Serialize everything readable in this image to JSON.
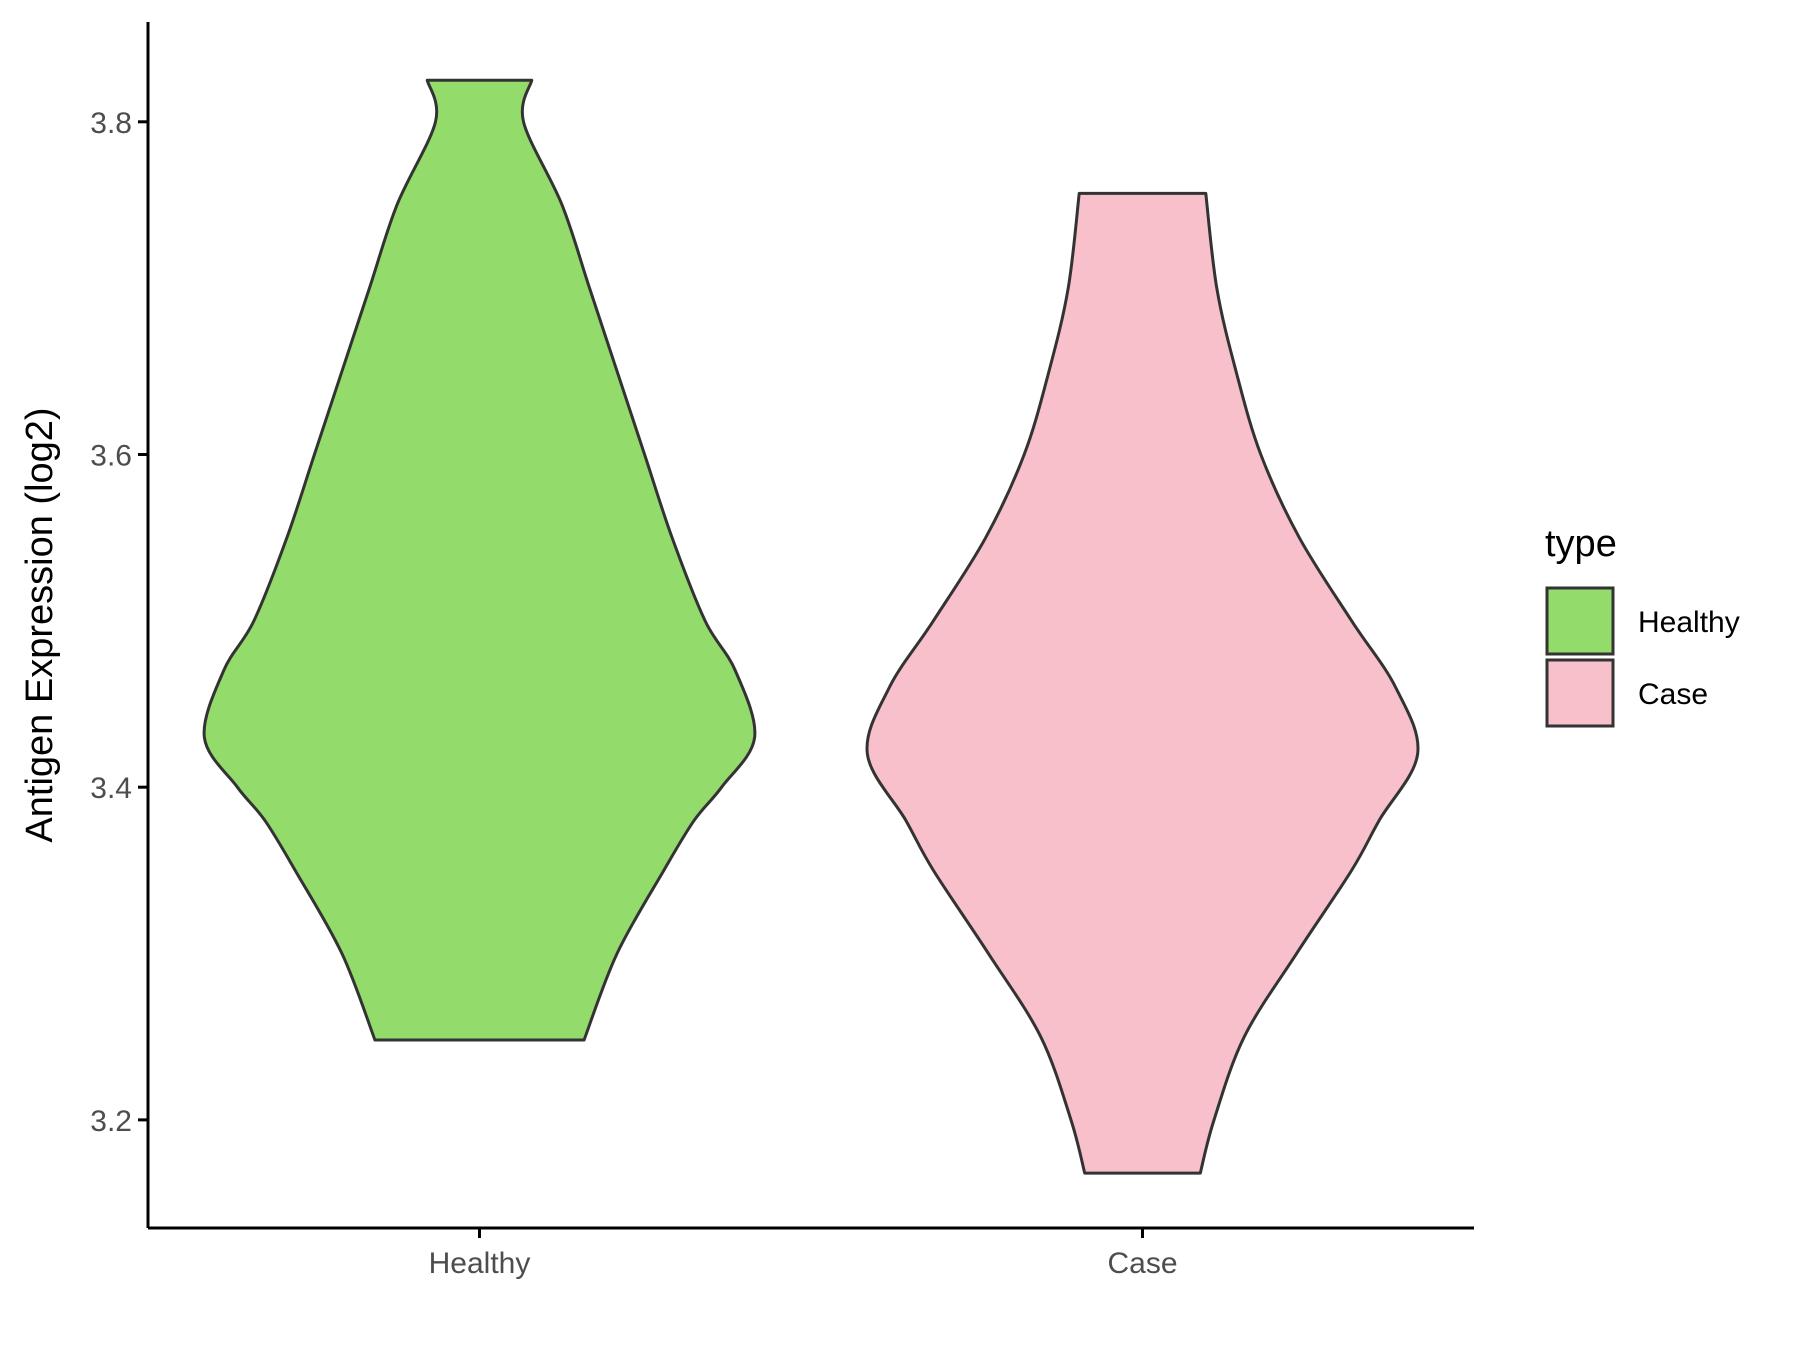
{
  "chart_data": {
    "type": "violin",
    "xlabel": "",
    "ylabel": "Antigen Expression (log2)",
    "ylim": [
      3.135,
      3.86
    ],
    "yticks": [
      3.2,
      3.4,
      3.6,
      3.8
    ],
    "ytick_labels": [
      "3.2",
      "3.4",
      "3.6",
      "3.8"
    ],
    "categories": [
      "Healthy",
      "Case"
    ],
    "legend": {
      "title": "type",
      "position": "right",
      "entries": [
        {
          "label": "Healthy",
          "color": "#93dc6b"
        },
        {
          "label": "Case",
          "color": "#f8c0cb"
        }
      ]
    },
    "grid": false,
    "series": [
      {
        "category": "Healthy",
        "color": "#93dc6b",
        "min": 3.248,
        "max": 3.825,
        "density_profile": [
          [
            3.248,
            0.38
          ],
          [
            3.3,
            0.5
          ],
          [
            3.35,
            0.67
          ],
          [
            3.38,
            0.78
          ],
          [
            3.4,
            0.88
          ],
          [
            3.43,
            1.0
          ],
          [
            3.47,
            0.93
          ],
          [
            3.5,
            0.82
          ],
          [
            3.55,
            0.7
          ],
          [
            3.6,
            0.6
          ],
          [
            3.65,
            0.5
          ],
          [
            3.7,
            0.4
          ],
          [
            3.75,
            0.3
          ],
          [
            3.8,
            0.16
          ],
          [
            3.825,
            0.19
          ]
        ]
      },
      {
        "category": "Case",
        "color": "#f8c0cb",
        "min": 3.168,
        "max": 3.757,
        "density_profile": [
          [
            3.168,
            0.21
          ],
          [
            3.2,
            0.26
          ],
          [
            3.25,
            0.37
          ],
          [
            3.3,
            0.56
          ],
          [
            3.35,
            0.76
          ],
          [
            3.38,
            0.86
          ],
          [
            3.42,
            1.0
          ],
          [
            3.46,
            0.92
          ],
          [
            3.5,
            0.76
          ],
          [
            3.55,
            0.57
          ],
          [
            3.6,
            0.43
          ],
          [
            3.65,
            0.34
          ],
          [
            3.7,
            0.27
          ],
          [
            3.757,
            0.23
          ]
        ]
      }
    ]
  }
}
